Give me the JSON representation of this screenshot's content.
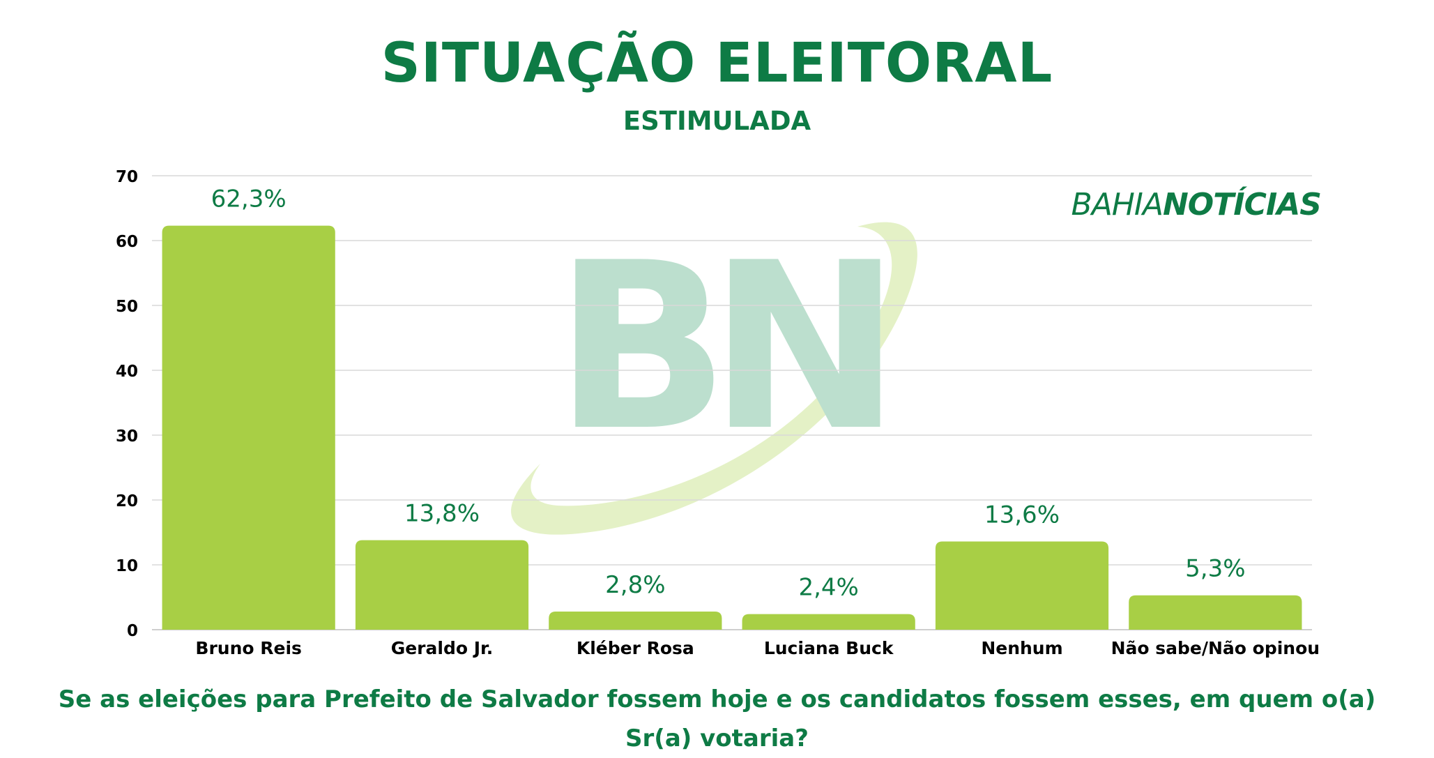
{
  "header": {
    "title": "SITUAÇÃO ELEITORAL",
    "subtitle": "ESTIMULADA"
  },
  "brand": {
    "part1": "BAHIA",
    "part2": "NOTÍCIAS",
    "watermark": "BN"
  },
  "question": "Se as eleições para Prefeito de Salvador fossem hoje e os candidatos fossem esses, em quem o(a) Sr(a) votaria?",
  "colors": {
    "bar": "#a8cf45",
    "text_green": "#0e7b45",
    "grid": "#d9d9d9",
    "watermark_letters": "#bcdfce",
    "watermark_swoosh": "#e4f1c6"
  },
  "chart_data": {
    "type": "bar",
    "categories": [
      "Bruno Reis",
      "Geraldo Jr.",
      "Kléber Rosa",
      "Luciana Buck",
      "Nenhum",
      "Não sabe/Não opinou"
    ],
    "values": [
      62.3,
      13.8,
      2.8,
      2.4,
      13.6,
      5.3
    ],
    "data_labels": [
      "62,3%",
      "13,8%",
      "2,8%",
      "2,4%",
      "13,6%",
      "5,3%"
    ],
    "ylim": [
      0,
      70
    ],
    "yticks": [
      0,
      10,
      20,
      30,
      40,
      50,
      60,
      70
    ],
    "grid": true,
    "xlabel": "",
    "ylabel": ""
  }
}
